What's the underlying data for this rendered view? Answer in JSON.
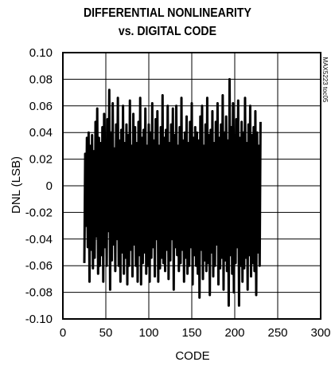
{
  "chart_data": {
    "type": "line",
    "title": "DIFFERENTIAL NONLINEARITY",
    "subtitle": "vs. DIGITAL CODE",
    "xlabel": "CODE",
    "ylabel": "DNL (LSB)",
    "xlim": [
      0,
      300
    ],
    "ylim": [
      -0.1,
      0.1
    ],
    "x_ticks": [
      "0",
      "50",
      "100",
      "150",
      "200",
      "250",
      "300"
    ],
    "y_ticks": [
      "0.10",
      "0.08",
      "0.06",
      "0.04",
      "0.02",
      "0",
      "-0.02",
      "-0.04",
      "-0.06",
      "-0.08",
      "-0.10"
    ],
    "grid": true,
    "watermark": "MAX5223 toc05",
    "series": [
      {
        "x": [
          25,
          26,
          27,
          28,
          29,
          30,
          31,
          32,
          33,
          34,
          35,
          36,
          37,
          38,
          39,
          40,
          41,
          42,
          43,
          44,
          45,
          46,
          47,
          48,
          49,
          50,
          51,
          52,
          53,
          54,
          55,
          56,
          57,
          58,
          59,
          60,
          61,
          62,
          63,
          64,
          65,
          66,
          67,
          68,
          69,
          70,
          71,
          72,
          73,
          74,
          75,
          76,
          77,
          78,
          79,
          80,
          81,
          82,
          83,
          84,
          85,
          86,
          87,
          88,
          89,
          90,
          91,
          92,
          93,
          94,
          95,
          96,
          97,
          98,
          99,
          100,
          101,
          102,
          103,
          104,
          105,
          106,
          107,
          108,
          109,
          110,
          111,
          112,
          113,
          114,
          115,
          116,
          117,
          118,
          119,
          120,
          121,
          122,
          123,
          124,
          125,
          126,
          127,
          128,
          129,
          130,
          131,
          132,
          133,
          134,
          135,
          136,
          137,
          138,
          139,
          140,
          141,
          142,
          143,
          144,
          145,
          146,
          147,
          148,
          149,
          150,
          151,
          152,
          153,
          154,
          155,
          156,
          157,
          158,
          159,
          160,
          161,
          162,
          163,
          164,
          165,
          166,
          167,
          168,
          169,
          170,
          171,
          172,
          173,
          174,
          175,
          176,
          177,
          178,
          179,
          180,
          181,
          182,
          183,
          184,
          185,
          186,
          187,
          188,
          189,
          190,
          191,
          192,
          193,
          194,
          195,
          196,
          197,
          198,
          199,
          200,
          201,
          202,
          203,
          204,
          205,
          206,
          207,
          208,
          209,
          210,
          211,
          212,
          213,
          214,
          215,
          216,
          217,
          218,
          219,
          220,
          221,
          222,
          223,
          224,
          225,
          226,
          227,
          228,
          229,
          230
        ],
        "y": [
          -0.058,
          0.024,
          -0.03,
          0.036,
          -0.046,
          0.04,
          -0.072,
          0.03,
          -0.048,
          0.038,
          -0.062,
          0.026,
          -0.054,
          0.048,
          -0.038,
          0.058,
          -0.066,
          0.036,
          -0.06,
          0.032,
          -0.052,
          0.044,
          -0.072,
          0.054,
          -0.046,
          0.022,
          -0.06,
          0.05,
          -0.034,
          0.072,
          -0.078,
          0.04,
          -0.056,
          0.062,
          -0.044,
          0.028,
          -0.064,
          0.046,
          -0.04,
          0.066,
          -0.06,
          0.034,
          -0.072,
          0.042,
          -0.05,
          0.06,
          -0.066,
          0.032,
          -0.054,
          0.046,
          -0.074,
          0.038,
          -0.06,
          0.064,
          -0.048,
          0.03,
          -0.068,
          0.054,
          -0.044,
          0.044,
          -0.06,
          0.032,
          -0.072,
          0.048,
          -0.052,
          0.066,
          -0.074,
          0.036,
          -0.058,
          0.042,
          -0.05,
          0.058,
          -0.066,
          0.03,
          -0.06,
          0.046,
          -0.072,
          0.04,
          -0.054,
          0.062,
          -0.046,
          0.034,
          -0.068,
          0.05,
          -0.04,
          0.056,
          -0.072,
          0.03,
          -0.062,
          0.044,
          -0.054,
          0.068,
          -0.058,
          0.036,
          -0.064,
          0.042,
          -0.048,
          0.06,
          -0.07,
          0.032,
          -0.056,
          0.046,
          -0.04,
          0.058,
          -0.078,
          0.038,
          -0.046,
          0.06,
          -0.052,
          0.03,
          -0.064,
          0.044,
          -0.058,
          0.066,
          -0.048,
          0.034,
          -0.072,
          0.04,
          -0.054,
          0.052,
          -0.066,
          0.032,
          -0.06,
          0.048,
          -0.046,
          0.062,
          -0.074,
          0.036,
          -0.052,
          0.044,
          -0.06,
          0.04,
          -0.066,
          0.034,
          -0.084,
          0.052,
          -0.048,
          0.06,
          -0.07,
          0.03,
          -0.056,
          0.046,
          -0.064,
          0.066,
          -0.058,
          0.038,
          -0.082,
          0.042,
          -0.05,
          0.056,
          -0.068,
          0.032,
          -0.06,
          0.048,
          -0.044,
          0.062,
          -0.074,
          0.036,
          -0.062,
          0.046,
          -0.054,
          0.068,
          -0.078,
          0.04,
          -0.056,
          0.052,
          -0.064,
          0.034,
          -0.09,
          0.08,
          -0.052,
          0.044,
          -0.066,
          0.062,
          -0.08,
          0.038,
          -0.058,
          0.05,
          -0.046,
          0.064,
          -0.09,
          0.036,
          -0.06,
          0.048,
          -0.072,
          0.04,
          -0.062,
          0.066,
          -0.054,
          0.032,
          -0.078,
          0.046,
          -0.052,
          0.06,
          -0.068,
          0.038,
          -0.058,
          0.044,
          -0.064,
          0.056,
          -0.082,
          0.04,
          -0.05,
          0.03,
          -0.06,
          0.048
        ]
      }
    ]
  }
}
